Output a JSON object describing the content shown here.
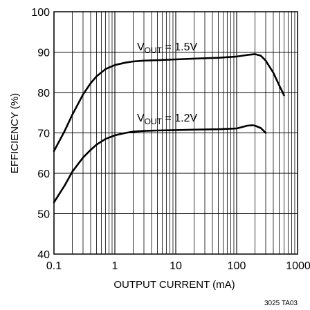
{
  "chart_data": {
    "type": "line",
    "title": "",
    "xlabel": "OUTPUT CURRENT (mA)",
    "ylabel": "EFFICIENCY (%)",
    "x_scale": "log",
    "xlim": [
      0.1,
      1000
    ],
    "ylim": [
      40,
      100
    ],
    "x_ticks": [
      0.1,
      1,
      10,
      100,
      1000
    ],
    "x_tick_labels": [
      "0.1",
      "1",
      "10",
      "100",
      "1000"
    ],
    "y_ticks": [
      40,
      50,
      60,
      70,
      80,
      90,
      100
    ],
    "y_tick_labels": [
      "40",
      "50",
      "60",
      "70",
      "80",
      "90",
      "100"
    ],
    "grid": true,
    "legend": "none",
    "series": [
      {
        "name": "VOUT = 1.5V",
        "label_main": "V",
        "label_sub": "OUT",
        "label_rest": " = 1.5V",
        "x": [
          0.1,
          0.15,
          0.2,
          0.3,
          0.4,
          0.5,
          0.7,
          1,
          1.5,
          2,
          3,
          5,
          10,
          20,
          50,
          100,
          150,
          200,
          250,
          300,
          400,
          500,
          600
        ],
        "y": [
          65.5,
          70.5,
          74.5,
          79.5,
          82.3,
          84.0,
          85.8,
          86.8,
          87.4,
          87.7,
          87.9,
          88.0,
          88.2,
          88.4,
          88.6,
          88.9,
          89.3,
          89.5,
          89.1,
          87.9,
          84.9,
          81.8,
          79.3
        ],
        "color": "#000000"
      },
      {
        "name": "VOUT = 1.2V",
        "label_main": "V",
        "label_sub": "OUT",
        "label_rest": " = 1.2V",
        "x": [
          0.1,
          0.15,
          0.2,
          0.3,
          0.4,
          0.5,
          0.7,
          1,
          1.5,
          2,
          3,
          5,
          10,
          20,
          50,
          100,
          120,
          150,
          180,
          200,
          250,
          300
        ],
        "y": [
          52.8,
          57.0,
          60.4,
          63.9,
          65.8,
          67.1,
          68.5,
          69.4,
          70.0,
          70.3,
          70.5,
          70.6,
          70.7,
          70.8,
          70.9,
          71.1,
          71.4,
          71.8,
          71.9,
          71.8,
          71.2,
          70.0
        ],
        "color": "#000000"
      }
    ],
    "figure_code": "3025 TA03"
  }
}
